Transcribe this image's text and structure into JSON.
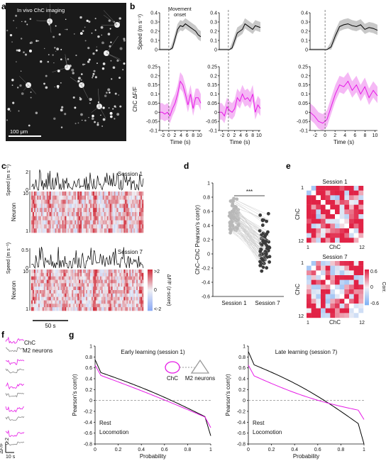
{
  "panels": {
    "a": "a",
    "b": "b",
    "c": "c",
    "d": "d",
    "e": "e",
    "f": "f",
    "g": "g"
  },
  "a": {
    "title": "In vivo ChC imaging",
    "scalebar": "100 μm"
  },
  "b": {
    "annotation_line1": "Movement",
    "annotation_line2": "onset",
    "ylabel_speed": "Speed (m s⁻¹)",
    "ylabel_dff": "ChC ΔF/F",
    "xlabel": "Time (s)",
    "speed_ticks": [
      "0",
      "0.1",
      "0.2",
      "0.3",
      "0.4"
    ],
    "dff_ticks": [
      "0.25",
      "0.2",
      "0.15",
      "0.1",
      "0.05",
      "0",
      "-0.05",
      "-0.1"
    ],
    "x_ticks": [
      "-2",
      "0",
      "2",
      "4",
      "6",
      "8",
      "10"
    ]
  },
  "c": {
    "session1": "Session 1",
    "session7": "Session 7",
    "speed_label": "Speed (m s⁻¹)",
    "neuron_label": "Neuron",
    "speed_ticks": [
      "0",
      "2"
    ],
    "speed_ticks7": [
      "0",
      "0.5"
    ],
    "neuron_ticks1": [
      "10",
      "1"
    ],
    "neuron_ticks7": [
      "10",
      "1"
    ],
    "colorbar_label": "ΔF/F (z-score)",
    "colorbar_ticks": [
      ">2",
      "0",
      "<-2"
    ],
    "scalebar": "50 s"
  },
  "d": {
    "ylabel": "ChC–ChC Pearson's corr(r)",
    "significance": "***",
    "categories": [
      "Session 1",
      "Session 7"
    ],
    "y_ticks": [
      "1",
      "0.8",
      "0.6",
      "0.4",
      "0.2",
      "0",
      "-0.2",
      "-0.4",
      "-0.6"
    ]
  },
  "e": {
    "session1": "Session 1",
    "session7": "Session 7",
    "axis_label": "ChC",
    "tick_start": "1",
    "tick_end": "12",
    "colorbar_label": "Corr.",
    "colorbar_ticks": [
      "0.6",
      "0",
      "-0.6"
    ]
  },
  "f": {
    "legend_chc": "ChC",
    "legend_m2": "M2 neurons",
    "scalebar_y": "ΔF/F",
    "scalebar_x": "10 s",
    "scalebar_val": "0.2"
  },
  "g": {
    "title_left": "Early learning (session 1)",
    "title_right": "Late learning (session 7)",
    "legend_chc": "ChC",
    "legend_m2": "M2 neurons",
    "ylabel": "Pearson's corr(r)",
    "xlabel": "Probability",
    "rest_label": "Rest",
    "loco_label": "Locomotion",
    "y_ticks": [
      "1",
      "0.8",
      "0.6",
      "0.4",
      "0.2",
      "0",
      "-0.2",
      "-0.4",
      "-0.6",
      "-0.8"
    ],
    "x_ticks": [
      "0",
      "0.2",
      "0.4",
      "0.6",
      "0.8",
      "1"
    ]
  },
  "colors": {
    "magenta": "#e619e6",
    "black": "#000000",
    "gray": "#888888",
    "shade_gray": "#c8c8c8",
    "shade_magenta": "#f5b8f5"
  }
}
